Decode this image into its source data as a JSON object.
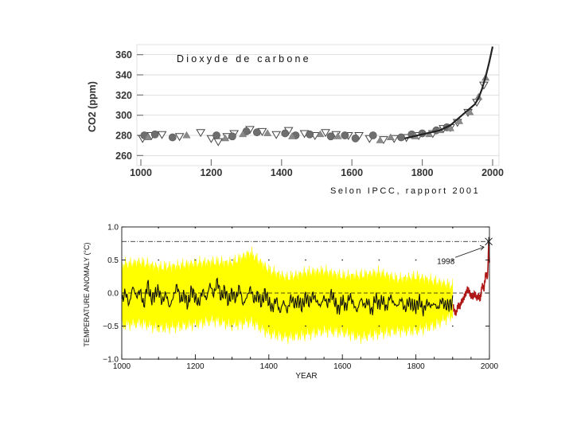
{
  "chart_data": [
    {
      "type": "scatter",
      "title": "Dioxyde de carbone",
      "source": "Selon IPCC, rapport 2001",
      "xlabel": "",
      "ylabel": "CO2 (ppm)",
      "xlim": [
        1000,
        2000
      ],
      "ylim": [
        250,
        370
      ],
      "x_ticks": [
        1000,
        1200,
        1400,
        1600,
        1800,
        2000
      ],
      "y_ticks": [
        260,
        280,
        300,
        320,
        340,
        360
      ],
      "colors": {
        "triangles_down": "#ffffff",
        "circles": "#6e6e6e",
        "triangles_up": "#8a8a8a",
        "trend": "#222222",
        "grid": "#cfcfcf"
      },
      "series": [
        {
          "marker": "triangle-down",
          "points": [
            [
              1005,
              277
            ],
            [
              1030,
              280
            ],
            [
              1060,
              281
            ],
            [
              1110,
              279
            ],
            [
              1170,
              283
            ],
            [
              1200,
              277
            ],
            [
              1220,
              274
            ],
            [
              1245,
              279
            ],
            [
              1265,
              282
            ],
            [
              1310,
              286
            ],
            [
              1345,
              284
            ],
            [
              1385,
              281
            ],
            [
              1420,
              285
            ],
            [
              1465,
              282
            ],
            [
              1495,
              280
            ],
            [
              1525,
              283
            ],
            [
              1555,
              281
            ],
            [
              1590,
              280
            ],
            [
              1620,
              280
            ],
            [
              1650,
              277
            ],
            [
              1690,
              276
            ],
            [
              1720,
              277
            ],
            [
              1755,
              278
            ],
            [
              1790,
              280
            ],
            [
              1830,
              282
            ],
            [
              1860,
              287
            ],
            [
              1880,
              288
            ],
            [
              1900,
              293
            ],
            [
              1930,
              303
            ],
            [
              1955,
              313
            ],
            [
              1975,
              330
            ]
          ]
        },
        {
          "marker": "circle",
          "points": [
            [
              1010,
              280
            ],
            [
              1040,
              281
            ],
            [
              1090,
              278
            ],
            [
              1215,
              280
            ],
            [
              1260,
              279
            ],
            [
              1300,
              284
            ],
            [
              1330,
              283
            ],
            [
              1410,
              282
            ],
            [
              1440,
              280
            ],
            [
              1480,
              281
            ],
            [
              1540,
              279
            ],
            [
              1580,
              280
            ],
            [
              1610,
              277
            ],
            [
              1660,
              280
            ],
            [
              1740,
              278
            ],
            [
              1770,
              281
            ],
            [
              1800,
              282
            ],
            [
              1840,
              285
            ],
            [
              1870,
              288
            ]
          ]
        },
        {
          "marker": "triangle-up",
          "points": [
            [
              1020,
              278
            ],
            [
              1130,
              280
            ],
            [
              1240,
              277
            ],
            [
              1290,
              281
            ],
            [
              1360,
              282
            ],
            [
              1430,
              279
            ],
            [
              1510,
              281
            ],
            [
              1560,
              279
            ],
            [
              1680,
              275
            ],
            [
              1710,
              278
            ],
            [
              1780,
              279
            ],
            [
              1820,
              281
            ],
            [
              1850,
              285
            ],
            [
              1880,
              287
            ],
            [
              1905,
              294
            ],
            [
              1935,
              303
            ],
            [
              1960,
              318
            ],
            [
              1980,
              337
            ]
          ]
        }
      ],
      "trend": {
        "x": [
          1750,
          1800,
          1850,
          1880,
          1900,
          1920,
          1940,
          1950,
          1960,
          1970,
          1980,
          1990,
          2000
        ],
        "y": [
          277,
          281,
          285,
          290,
          296,
          302,
          308,
          311,
          317,
          326,
          338,
          352,
          368
        ]
      }
    },
    {
      "type": "line",
      "title": "",
      "xlabel": "YEAR",
      "ylabel": "TEMPERATURE ANOMALY (°C)",
      "xlim": [
        1000,
        2000
      ],
      "ylim": [
        -1.0,
        1.0
      ],
      "x_ticks": [
        1000,
        1200,
        1400,
        1600,
        1800,
        2000
      ],
      "x_tick_labels": [
        "1000",
        "1200",
        "1400",
        "1600",
        "1800",
        "2000"
      ],
      "y_ticks": [
        -1.0,
        -0.5,
        0.0,
        0.5,
        1.0
      ],
      "y_tick_labels": [
        "−1.0",
        "−0.5",
        "0.0",
        "0.5",
        "1.0"
      ],
      "reference_line": 0.0,
      "record_line": 0.78,
      "annotation": {
        "label": "1998",
        "x": 1998,
        "y": 0.78
      },
      "colors": {
        "band": "#ffff00",
        "reconstruction": "#111111",
        "instrumental": "#b01818",
        "lines": "#111111"
      },
      "band": {
        "x": [
          1000,
          1050,
          1100,
          1150,
          1200,
          1250,
          1300,
          1350,
          1400,
          1450,
          1500,
          1550,
          1600,
          1650,
          1700,
          1750,
          1800,
          1850,
          1900
        ],
        "upper": [
          0.42,
          0.46,
          0.38,
          0.4,
          0.44,
          0.46,
          0.45,
          0.6,
          0.34,
          0.22,
          0.3,
          0.32,
          0.25,
          0.26,
          0.3,
          0.2,
          0.24,
          0.17,
          0.1
        ],
        "lower": [
          -0.48,
          -0.44,
          -0.52,
          -0.5,
          -0.46,
          -0.4,
          -0.48,
          -0.42,
          -0.6,
          -0.66,
          -0.62,
          -0.56,
          -0.58,
          -0.66,
          -0.6,
          -0.56,
          -0.56,
          -0.48,
          -0.32
        ]
      },
      "reconstruction": {
        "x": [
          1000,
          1010,
          1020,
          1030,
          1040,
          1050,
          1060,
          1070,
          1080,
          1090,
          1100,
          1110,
          1120,
          1130,
          1140,
          1150,
          1160,
          1170,
          1180,
          1190,
          1200,
          1210,
          1220,
          1230,
          1240,
          1250,
          1260,
          1270,
          1280,
          1290,
          1300,
          1310,
          1320,
          1330,
          1340,
          1350,
          1360,
          1370,
          1380,
          1390,
          1400,
          1410,
          1420,
          1430,
          1440,
          1450,
          1460,
          1470,
          1480,
          1490,
          1500,
          1510,
          1520,
          1530,
          1540,
          1550,
          1560,
          1570,
          1580,
          1590,
          1600,
          1610,
          1620,
          1630,
          1640,
          1650,
          1660,
          1670,
          1680,
          1690,
          1700,
          1710,
          1720,
          1730,
          1740,
          1750,
          1760,
          1770,
          1780,
          1790,
          1800,
          1810,
          1820,
          1830,
          1840,
          1850,
          1860,
          1870,
          1880,
          1890,
          1900
        ],
        "y": [
          -0.12,
          0.02,
          -0.18,
          0.1,
          -0.06,
          0.04,
          -0.2,
          0.15,
          -0.1,
          -0.02,
          0.05,
          -0.14,
          0.0,
          -0.22,
          -0.06,
          0.12,
          -0.12,
          -0.02,
          -0.18,
          0.06,
          -0.08,
          -0.16,
          0.04,
          -0.1,
          0.14,
          -0.04,
          0.2,
          -0.08,
          0.06,
          -0.14,
          0.02,
          -0.1,
          0.1,
          -0.18,
          -0.06,
          0.08,
          -0.12,
          -0.02,
          -0.16,
          0.02,
          -0.14,
          -0.24,
          -0.08,
          -0.3,
          -0.12,
          -0.28,
          -0.06,
          -0.18,
          -0.1,
          -0.22,
          -0.04,
          -0.16,
          -0.02,
          -0.12,
          -0.2,
          -0.06,
          -0.18,
          0.0,
          -0.14,
          -0.26,
          -0.1,
          -0.22,
          -0.04,
          -0.16,
          -0.28,
          -0.08,
          -0.2,
          -0.12,
          -0.3,
          -0.06,
          -0.18,
          -0.1,
          -0.24,
          -0.04,
          -0.16,
          -0.2,
          -0.08,
          -0.26,
          -0.12,
          -0.18,
          -0.22,
          -0.1,
          -0.28,
          -0.14,
          -0.2,
          -0.16,
          -0.24,
          -0.1,
          -0.2,
          -0.18,
          -0.14
        ]
      },
      "instrumental": {
        "x": [
          1902,
          1905,
          1910,
          1915,
          1920,
          1925,
          1930,
          1935,
          1940,
          1945,
          1950,
          1955,
          1960,
          1965,
          1970,
          1975,
          1980,
          1985,
          1990,
          1995,
          1998,
          2000
        ],
        "y": [
          -0.22,
          -0.28,
          -0.3,
          -0.18,
          -0.2,
          -0.12,
          -0.08,
          -0.02,
          0.06,
          0.02,
          -0.04,
          -0.06,
          0.0,
          -0.08,
          -0.04,
          -0.1,
          0.12,
          0.06,
          0.3,
          0.22,
          0.78,
          0.46
        ]
      }
    }
  ]
}
